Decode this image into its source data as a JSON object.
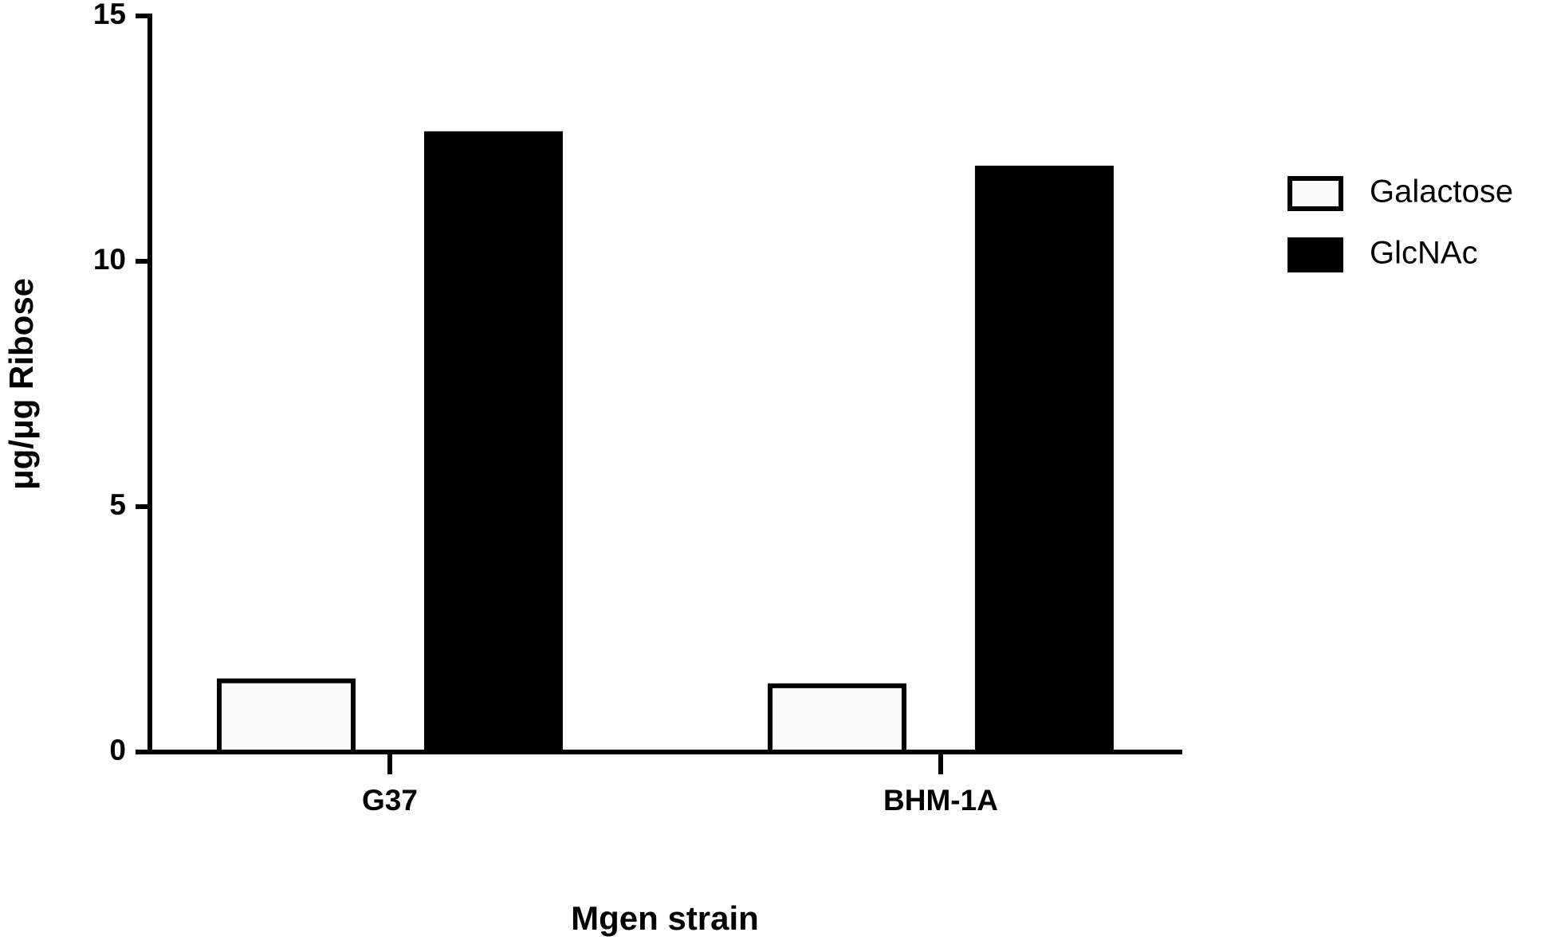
{
  "chart_data": {
    "type": "bar",
    "xlabel": "Mgen strain",
    "ylabel": "μg/μg Ribose",
    "categories": [
      "G37",
      "BHM-1A"
    ],
    "series": [
      {
        "name": "Galactose",
        "color": "#fafafa",
        "values": [
          1.45,
          1.35
        ]
      },
      {
        "name": "GlcNAc",
        "color": "#000000",
        "values": [
          12.6,
          11.9
        ]
      }
    ],
    "ylim": [
      0,
      15
    ],
    "yticks": [
      0,
      5,
      10,
      15
    ],
    "grid": false,
    "legend": "right"
  }
}
